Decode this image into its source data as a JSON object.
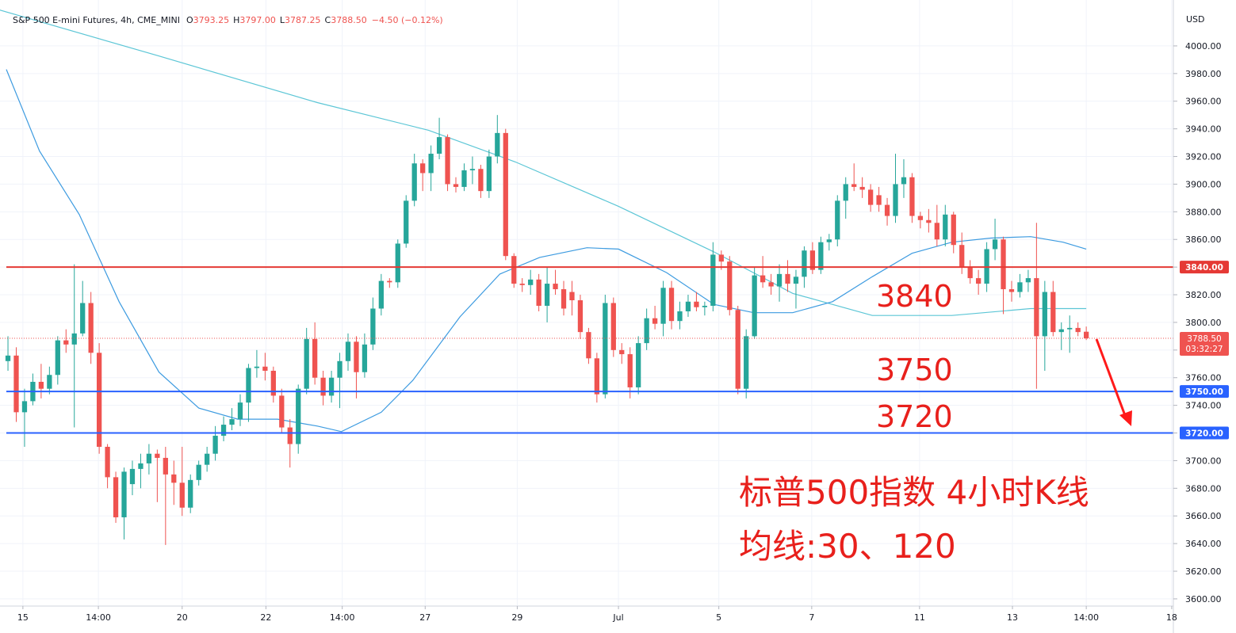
{
  "chart_data": {
    "type": "candlestick",
    "title": "S&P 500 E-mini Futures, 4h, CME_MINI",
    "legend_ohlc": [
      {
        "label": "O",
        "value": "3793.25"
      },
      {
        "label": "H",
        "value": "3797.00"
      },
      {
        "label": "L",
        "value": "3787.25"
      },
      {
        "label": "C",
        "value": "3788.50"
      }
    ],
    "change": "−4.50 (−0.12%)",
    "currency": "USD",
    "up_color": "#26a69a",
    "down_color": "#ef5350",
    "open": [
      3772,
      3776,
      3735,
      3743,
      3757,
      3752,
      3762,
      3787,
      3784,
      3792,
      3814,
      3778,
      3710,
      3688,
      3659,
      3683,
      3694,
      3698,
      3705,
      3702,
      3690,
      3684,
      3666,
      3686,
      3697,
      3705,
      3718,
      3726,
      3730,
      3742,
      3767,
      3768,
      3765,
      3747,
      3724,
      3712,
      3752,
      3788,
      3760,
      3747,
      3760,
      3772,
      3786,
      3764,
      3784,
      3810,
      3830,
      3829,
      3857,
      3888,
      3915,
      3908,
      3922,
      3934,
      3900,
      3898,
      3910,
      3911,
      3895,
      3920,
      3937,
      3848,
      3828,
      3827,
      3831,
      3812,
      3828,
      3824,
      3822,
      3816,
      3793,
      3774,
      3748,
      3814,
      3780,
      3777,
      3753,
      3785,
      3803,
      3799,
      3825,
      3801,
      3808,
      3815,
      3811,
      3812,
      3849,
      3844,
      3809,
      3752,
      3790,
      3834,
      3829,
      3826,
      3835,
      3828,
      3833,
      3852,
      3838,
      3858,
      3860,
      3888,
      3900,
      3898,
      3896,
      3892,
      3885,
      3877,
      3900,
      3905,
      3877,
      3874,
      3872,
      3860,
      3878,
      3856,
      3840,
      3832,
      3828,
      3853,
      3860,
      3824,
      3822,
      3829,
      3832,
      3790,
      3822,
      3793,
      3795,
      3796,
      3793.25
    ],
    "high": [
      3790,
      3782,
      3752,
      3763,
      3770,
      3768,
      3790,
      3795,
      3842,
      3830,
      3822,
      3785,
      3712,
      3692,
      3695,
      3700,
      3705,
      3712,
      3708,
      3710,
      3700,
      3710,
      3690,
      3700,
      3710,
      3725,
      3732,
      3738,
      3748,
      3770,
      3780,
      3778,
      3768,
      3752,
      3730,
      3755,
      3796,
      3800,
      3765,
      3765,
      3778,
      3792,
      3790,
      3792,
      3818,
      3835,
      3832,
      3860,
      3892,
      3922,
      3918,
      3928,
      3948,
      3936,
      3905,
      3915,
      3920,
      3914,
      3925,
      3950,
      3940,
      3850,
      3832,
      3838,
      3835,
      3840,
      3838,
      3830,
      3830,
      3820,
      3796,
      3778,
      3820,
      3818,
      3785,
      3782,
      3790,
      3810,
      3812,
      3830,
      3830,
      3815,
      3820,
      3822,
      3815,
      3858,
      3852,
      3848,
      3812,
      3795,
      3840,
      3848,
      3835,
      3842,
      3845,
      3838,
      3855,
      3858,
      3862,
      3864,
      3892,
      3905,
      3915,
      3905,
      3900,
      3898,
      3890,
      3922,
      3918,
      3908,
      3880,
      3882,
      3885,
      3885,
      3880,
      3865,
      3845,
      3838,
      3858,
      3875,
      3862,
      3830,
      3835,
      3838,
      3872,
      3830,
      3830,
      3800,
      3805,
      3800,
      3797
    ],
    "low": [
      3765,
      3728,
      3710,
      3740,
      3745,
      3748,
      3755,
      3778,
      3724,
      3790,
      3770,
      3705,
      3680,
      3655,
      3643,
      3675,
      3680,
      3690,
      3670,
      3639,
      3668,
      3660,
      3662,
      3682,
      3692,
      3700,
      3714,
      3722,
      3725,
      3728,
      3760,
      3758,
      3742,
      3720,
      3695,
      3705,
      3748,
      3755,
      3740,
      3742,
      3738,
      3765,
      3745,
      3760,
      3780,
      3805,
      3825,
      3825,
      3854,
      3884,
      3895,
      3895,
      3918,
      3895,
      3894,
      3895,
      3900,
      3890,
      3890,
      3915,
      3845,
      3825,
      3822,
      3820,
      3808,
      3800,
      3820,
      3805,
      3805,
      3788,
      3770,
      3742,
      3745,
      3775,
      3770,
      3745,
      3748,
      3780,
      3795,
      3790,
      3795,
      3795,
      3804,
      3808,
      3805,
      3808,
      3838,
      3805,
      3748,
      3745,
      3788,
      3825,
      3820,
      3815,
      3822,
      3810,
      3825,
      3835,
      3835,
      3852,
      3855,
      3875,
      3895,
      3890,
      3880,
      3880,
      3870,
      3872,
      3890,
      3872,
      3868,
      3865,
      3855,
      3855,
      3850,
      3835,
      3828,
      3820,
      3822,
      3845,
      3806,
      3815,
      3818,
      3822,
      3752,
      3765,
      3790,
      3780,
      3778,
      3790,
      3787.25
    ],
    "close": [
      3776,
      3735,
      3743,
      3757,
      3752,
      3762,
      3787,
      3784,
      3792,
      3814,
      3778,
      3710,
      3688,
      3659,
      3692,
      3694,
      3698,
      3705,
      3702,
      3690,
      3684,
      3666,
      3686,
      3697,
      3705,
      3718,
      3726,
      3730,
      3742,
      3767,
      3768,
      3765,
      3747,
      3724,
      3712,
      3752,
      3788,
      3760,
      3747,
      3760,
      3772,
      3786,
      3764,
      3784,
      3810,
      3830,
      3829,
      3857,
      3888,
      3915,
      3908,
      3922,
      3934,
      3900,
      3898,
      3910,
      3911,
      3895,
      3920,
      3937,
      3848,
      3828,
      3827,
      3831,
      3812,
      3828,
      3824,
      3810,
      3816,
      3793,
      3774,
      3748,
      3814,
      3780,
      3777,
      3753,
      3785,
      3803,
      3799,
      3825,
      3801,
      3808,
      3815,
      3811,
      3812,
      3849,
      3844,
      3809,
      3752,
      3790,
      3834,
      3829,
      3826,
      3835,
      3828,
      3833,
      3852,
      3838,
      3858,
      3860,
      3888,
      3900,
      3898,
      3896,
      3885,
      3885,
      3877,
      3900,
      3905,
      3877,
      3874,
      3872,
      3860,
      3878,
      3856,
      3840,
      3832,
      3828,
      3853,
      3860,
      3824,
      3822,
      3829,
      3832,
      3790,
      3822,
      3793,
      3795,
      3796,
      3793,
      3788.5
    ],
    "series": [
      {
        "color": "#5cc6d6",
        "x": [
          -1,
          18,
          37.3,
          50.7,
          61.2,
          73.6,
          85.1,
          94.6,
          104.2,
          113.8,
          123.3,
          130
        ],
        "values": [
          4026,
          3993,
          3959,
          3939,
          3916,
          3884,
          3851,
          3821,
          3805,
          3805,
          3810,
          3810
        ]
      },
      {
        "color": "#3d9be0",
        "x": [
          -0.2,
          3.8,
          8.6,
          13.4,
          18.2,
          23,
          27.7,
          32.5,
          37.3,
          40.2,
          45,
          48.8,
          54.5,
          59.3,
          64.1,
          69.8,
          73.6,
          79.4,
          85.1,
          89.9,
          94.6,
          99.4,
          104.2,
          109,
          113.8,
          118.5,
          123.3,
          127.2,
          130
        ],
        "values": [
          3983,
          3924,
          3878,
          3815,
          3764,
          3738,
          3730,
          3730,
          3725,
          3721,
          3735,
          3758,
          3804,
          3835,
          3847,
          3854,
          3853,
          3836,
          3813,
          3807,
          3807,
          3815,
          3833,
          3850,
          3858,
          3861,
          3862,
          3858,
          3853
        ]
      }
    ],
    "hlines": [
      {
        "value": 3840,
        "label": "3840.00",
        "annotation": "3840",
        "color": "#e53935"
      },
      {
        "value": 3750,
        "label": "3750.00",
        "annotation": "3750",
        "color": "#2962ff"
      },
      {
        "value": 3720,
        "label": "3720.00",
        "annotation": "3720",
        "color": "#2962ff"
      }
    ],
    "last_price": {
      "value": 3788.5,
      "label": "3788.50",
      "countdown": "03:32:27",
      "color": "#ef5350"
    },
    "annotations": [
      "标普500指数 4小时K线",
      "均线:30、120"
    ],
    "xlim": [
      -0.96,
      140.5
    ],
    "ylim": [
      3594.8,
      4033.2
    ],
    "xticks": [
      {
        "value": 1.8,
        "label": "15"
      },
      {
        "value": 10.9,
        "label": "14:00"
      },
      {
        "value": 21,
        "label": "20"
      },
      {
        "value": 31.1,
        "label": "22"
      },
      {
        "value": 40.3,
        "label": "14:00"
      },
      {
        "value": 50.3,
        "label": "27"
      },
      {
        "value": 61.4,
        "label": "29"
      },
      {
        "value": 73.6,
        "label": "Jul"
      },
      {
        "value": 85.7,
        "label": "5"
      },
      {
        "value": 96.9,
        "label": "7"
      },
      {
        "value": 109.9,
        "label": "11"
      },
      {
        "value": 121.1,
        "label": "13"
      },
      {
        "value": 130,
        "label": "14:00"
      },
      {
        "value": 140.3,
        "label": "18"
      }
    ],
    "yticks": [
      {
        "value": 3600,
        "label": "3600.00"
      },
      {
        "value": 3620,
        "label": "3620.00"
      },
      {
        "value": 3640,
        "label": "3640.00"
      },
      {
        "value": 3660,
        "label": "3660.00"
      },
      {
        "value": 3680,
        "label": "3680.00"
      },
      {
        "value": 3700,
        "label": "3700.00"
      },
      {
        "value": 3720,
        "label": "3720.00"
      },
      {
        "value": 3740,
        "label": "3740.00"
      },
      {
        "value": 3760,
        "label": "3760.00"
      },
      {
        "value": 3780,
        "label": "3780.00"
      },
      {
        "value": 3800,
        "label": "3800.00"
      },
      {
        "value": 3820,
        "label": "3820.00"
      },
      {
        "value": 3840,
        "label": "3840.00"
      },
      {
        "value": 3860,
        "label": "3860.00"
      },
      {
        "value": 3880,
        "label": "3880.00"
      },
      {
        "value": 3900,
        "label": "3900.00"
      },
      {
        "value": 3920,
        "label": "3920.00"
      },
      {
        "value": 3940,
        "label": "3940.00"
      },
      {
        "value": 3960,
        "label": "3960.00"
      },
      {
        "value": 3980,
        "label": "3980.00"
      },
      {
        "value": 4000,
        "label": "4000.00"
      }
    ],
    "grid": true
  }
}
